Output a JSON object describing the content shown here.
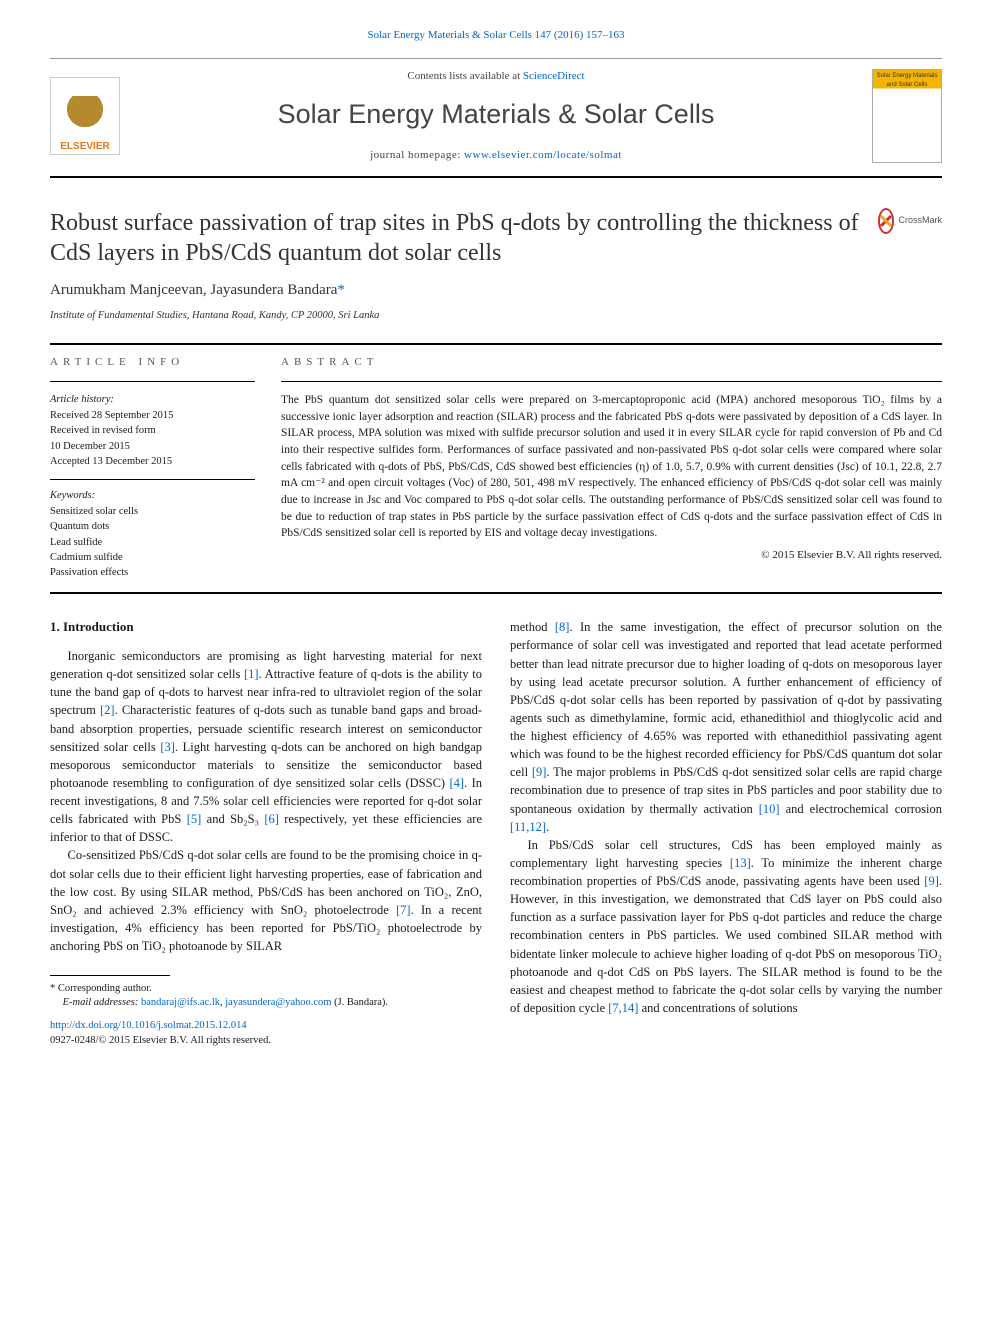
{
  "citation": "Solar Energy Materials & Solar Cells 147 (2016) 157–163",
  "header": {
    "contents_prefix": "Contents lists available at ",
    "contents_link": "ScienceDirect",
    "journal": "Solar Energy Materials & Solar Cells",
    "homepage_prefix": "journal homepage: ",
    "homepage_link": "www.elsevier.com/locate/solmat",
    "elsevier": "ELSEVIER",
    "cover_text": "Solar Energy Materials and Solar Cells"
  },
  "crossmark": "CrossMark",
  "title": "Robust surface passivation of trap sites in PbS q-dots by controlling the thickness of CdS layers in PbS/CdS quantum dot solar cells",
  "authors_html": "Arumukham Manjceevan, Jayasundera Bandara",
  "corr_marker": "*",
  "affiliation": "Institute of Fundamental Studies, Hantana Road, Kandy, CP 20000, Sri Lanka",
  "info": {
    "heading": "ARTICLE INFO",
    "history_label": "Article history:",
    "history": [
      "Received 28 September 2015",
      "Received in revised form",
      "10 December 2015",
      "Accepted 13 December 2015"
    ],
    "keywords_label": "Keywords:",
    "keywords": [
      "Sensitized solar cells",
      "Quantum dots",
      "Lead sulfide",
      "Cadmium sulfide",
      "Passivation effects"
    ]
  },
  "abstract": {
    "heading": "ABSTRACT",
    "text": "The PbS quantum dot sensitized solar cells were prepared on 3-mercaptoproponic acid (MPA) anchored mesoporous TiO₂ films by a successive ionic layer adsorption and reaction (SILAR) process and the fabricated PbS q-dots were passivated by deposition of a CdS layer. In SILAR process, MPA solution was mixed with sulfide precursor solution and used it in every SILAR cycle for rapid conversion of Pb and Cd into their respective sulfides form. Performances of surface passivated and non-passivated PbS q-dot solar cells were compared where solar cells fabricated with q-dots of PbS, PbS/CdS, CdS showed best efficiencies (η) of 1.0, 5.7, 0.9% with current densities (Jsc) of 10.1, 22.8, 2.7 mA cm⁻² and open circuit voltages (Voc) of 280, 501, 498 mV respectively. The enhanced efficiency of PbS/CdS q-dot solar cell was mainly due to increase in Jsc and Voc compared to PbS q-dot solar cells. The outstanding performance of PbS/CdS sensitized solar cell was found to be due to reduction of trap states in PbS particle by the surface passivation effect of CdS q-dots and the surface passivation effect of CdS in PbS/CdS sensitized solar cell is reported by EIS and voltage decay investigations.",
    "copyright": "© 2015 Elsevier B.V. All rights reserved."
  },
  "section1": {
    "heading": "1.  Introduction",
    "p1": "Inorganic semiconductors are promising as light harvesting material for next generation q-dot sensitized solar cells [1]. Attractive feature of q-dots is the ability to tune the band gap of q-dots to harvest near infra-red to ultraviolet region of the solar spectrum [2]. Characteristic features of q-dots such as tunable band gaps and broad-band absorption properties, persuade scientific research interest on semiconductor sensitized solar cells [3]. Light harvesting q-dots can be anchored on high bandgap mesoporous semiconductor materials to sensitize the semiconductor based photoanode resembling to configuration of dye sensitized solar cells (DSSC) [4]. In recent investigations, 8 and 7.5% solar cell efficiencies were reported for q-dot solar cells fabricated with PbS [5] and Sb₂S₃ [6] respectively, yet these efficiencies are inferior to that of DSSC.",
    "p2": "Co-sensitized PbS/CdS q-dot solar cells are found to be the promising choice in q-dot solar cells due to their efficient light harvesting properties, ease of fabrication and the low cost. By using SILAR method, PbS/CdS has been anchored on TiO₂, ZnO, SnO₂ and achieved 2.3% efficiency with SnO₂ photoelectrode [7]. In a recent investigation, 4% efficiency has been reported for PbS/TiO₂ photoelectrode by anchoring PbS on TiO₂ photoanode by SILAR",
    "p3": "method [8]. In the same investigation, the effect of precursor solution on the performance of solar cell was investigated and reported that lead acetate performed better than lead nitrate precursor due to higher loading of q-dots on mesoporous layer by using lead acetate precursor solution. A further enhancement of efficiency of PbS/CdS q-dot solar cells has been reported by passivation of q-dot by passivating agents such as dimethylamine, formic acid, ethanedithiol and thioglycolic acid and the highest efficiency of 4.65% was reported with ethanedithiol passivating agent which was found to be the highest recorded efficiency for PbS/CdS quantum dot solar cell [9]. The major problems in PbS/CdS q-dot sensitized solar cells are rapid charge recombination due to presence of trap sites in PbS particles and poor stability due to spontaneous oxidation by thermally activation [10] and electrochemical corrosion [11,12].",
    "p4": "In PbS/CdS solar cell structures, CdS has been employed mainly as complementary light harvesting species [13]. To minimize the inherent charge recombination properties of PbS/CdS anode, passivating agents have been used [9]. However, in this investigation, we demonstrated that CdS layer on PbS could also function as a surface passivation layer for PbS q-dot particles and reduce the charge recombination centers in PbS particles. We used combined SILAR method with bidentate linker molecule to achieve higher loading of q-dot PbS on mesoporous TiO₂ photoanode and q-dot CdS on PbS layers. The SILAR method is found to be the easiest and cheapest method to fabricate the q-dot solar cells by varying the number of deposition cycle [7,14] and concentrations of solutions"
  },
  "footnotes": {
    "corr": "* Corresponding author.",
    "email_label": "E-mail addresses: ",
    "email1": "bandaraj@ifs.ac.lk",
    "email_sep": ", ",
    "email2": "jayasundera@yahoo.com",
    "email_person": " (J. Bandara)."
  },
  "doi": {
    "link": "http://dx.doi.org/10.1016/j.solmat.2015.12.014",
    "issn_line": "0927-0248/© 2015 Elsevier B.V. All rights reserved."
  },
  "refs": {
    "r1": "[1]",
    "r2": "[2]",
    "r3": "[3]",
    "r4": "[4]",
    "r5": "[5]",
    "r6": "[6]",
    "r7": "[7]",
    "r8": "[8]",
    "r9": "[9]",
    "r10": "[10]",
    "r1112": "[11,12]",
    "r13": "[13]",
    "r714": "[7,14]"
  }
}
